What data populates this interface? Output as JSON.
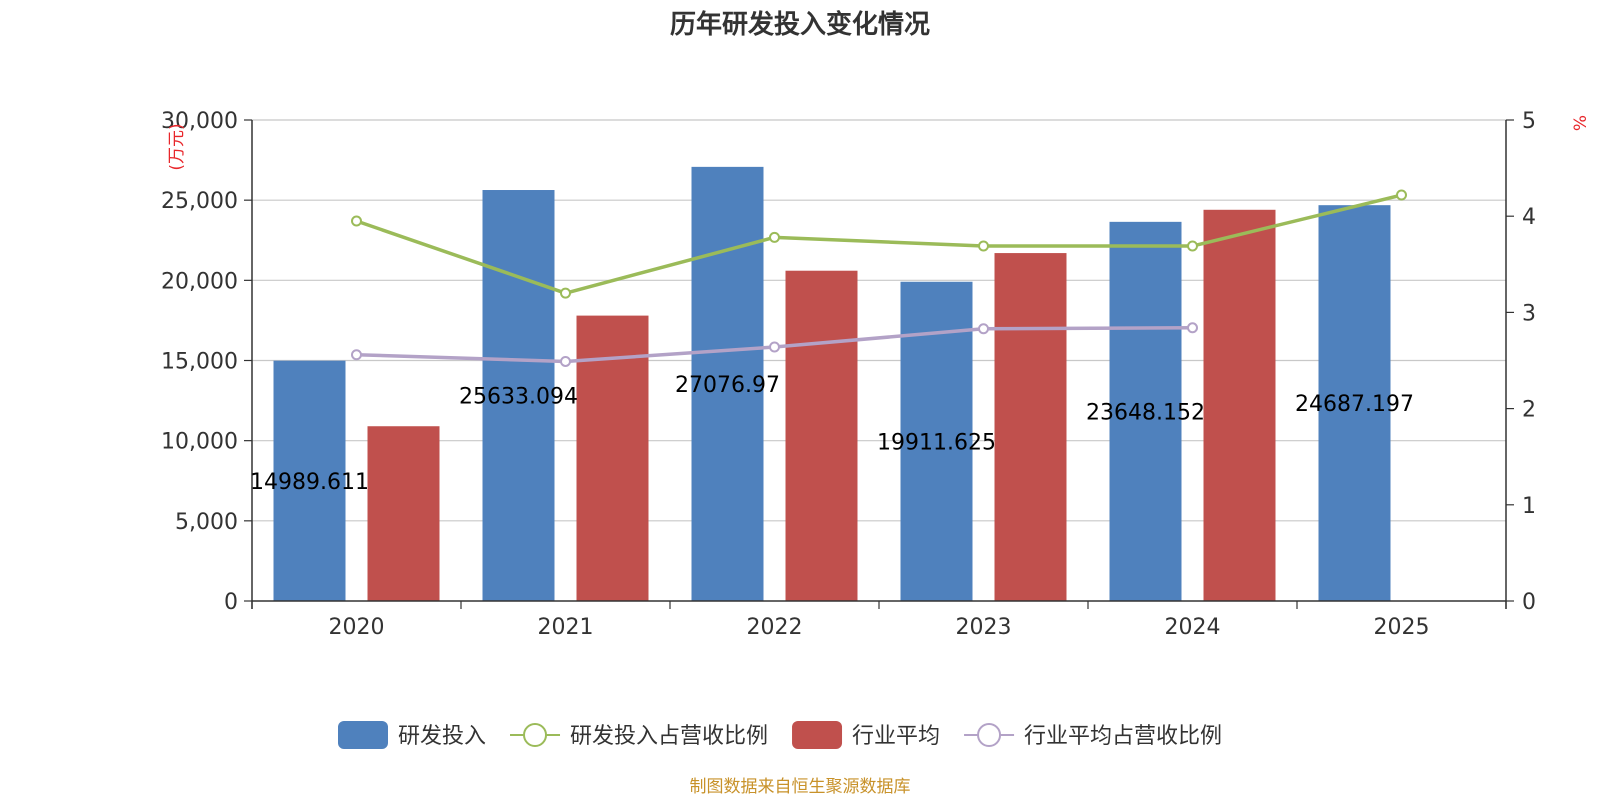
{
  "chart_data": {
    "type": "bar",
    "title": "历年研发投入变化情况",
    "categories": [
      "2020",
      "2021",
      "2022",
      "2023",
      "2024",
      "2025"
    ],
    "left_axis": {
      "unit_label": "(万元)",
      "ylim": [
        0,
        30000
      ],
      "ticks": [
        0,
        5000,
        10000,
        15000,
        20000,
        25000,
        30000
      ],
      "tick_labels": [
        "0",
        "5,000",
        "10,000",
        "15,000",
        "20,000",
        "25,000",
        "30,000"
      ]
    },
    "right_axis": {
      "unit_label": "%",
      "ylim": [
        0,
        5
      ],
      "ticks": [
        0,
        1,
        2,
        3,
        4,
        5
      ],
      "tick_labels": [
        "0",
        "1",
        "2",
        "3",
        "4",
        "5"
      ]
    },
    "series": [
      {
        "name": "研发投入",
        "type": "bar",
        "axis": "left",
        "color": "#4f81bd",
        "values": [
          14989.611,
          25633.094,
          27076.97,
          19911.625,
          23648.152,
          24687.197
        ],
        "labels": [
          "14989.611",
          "25633.094",
          "27076.97",
          "19911.625",
          "23648.152",
          "24687.197"
        ]
      },
      {
        "name": "研发投入占营收比例",
        "type": "line",
        "axis": "right",
        "color": "#9bbb59",
        "values": [
          3.95,
          3.2,
          3.78,
          3.69,
          3.69,
          4.22
        ]
      },
      {
        "name": "行业平均",
        "type": "bar",
        "axis": "left",
        "color": "#c0504d",
        "values": [
          10900,
          17800,
          20600,
          21700,
          24400,
          null
        ]
      },
      {
        "name": "行业平均占营收比例",
        "type": "line",
        "axis": "right",
        "color": "#b3a2c7",
        "values": [
          2.56,
          2.49,
          2.64,
          2.83,
          2.84,
          null
        ]
      }
    ],
    "legend_position": "bottom",
    "grid": true
  },
  "source_note": "制图数据来自恒生聚源数据库",
  "colors": {
    "unit_label": "#e8262b",
    "source_note": "#c8922a",
    "grid": "#c8c8c8",
    "axis": "#333333"
  }
}
